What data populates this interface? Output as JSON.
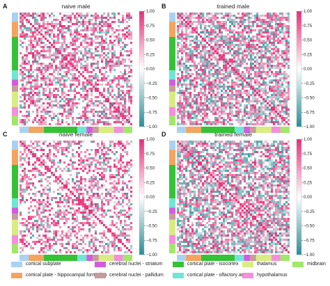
{
  "chart_data": [
    {
      "panel": "A",
      "title": "naive male",
      "type": "heatmap",
      "density": 0.55,
      "negative_share": 0.28,
      "seed": 11
    },
    {
      "panel": "B",
      "title": "trained male",
      "type": "heatmap",
      "density": 0.7,
      "negative_share": 0.45,
      "seed": 23
    },
    {
      "panel": "C",
      "title": "naive female",
      "type": "heatmap",
      "density": 0.42,
      "negative_share": 0.25,
      "seed": 37
    },
    {
      "panel": "D",
      "title": "trained female",
      "type": "heatmap",
      "density": 0.68,
      "negative_share": 0.5,
      "seed": 53
    }
  ],
  "colorbar": {
    "ticks": [
      "1.00",
      "0.75",
      "0.50",
      "0.25",
      "0.00",
      "−0.25",
      "−0.50",
      "−0.75",
      "−1.00"
    ],
    "range": [
      -1,
      1
    ],
    "pos_color": "#e8317a",
    "neg_color": "#2f8f99"
  },
  "region_groups": [
    {
      "name": "cortical subplate",
      "color": "#a9d2f2",
      "count": 3
    },
    {
      "name": "cortical plate - hippocampal formation",
      "color": "#f3a45f",
      "count": 5
    },
    {
      "name": "cortical plate - isocortex",
      "color": "#35c236",
      "count": 11
    },
    {
      "name": "cortical plate - olfactory areas",
      "color": "#6fe6d6",
      "count": 3
    },
    {
      "name": "cerebral nuclei - striatum",
      "color": "#d45be0",
      "count": 2
    },
    {
      "name": "cerebral nuclei - pallidum",
      "color": "#c79b9b",
      "count": 2
    },
    {
      "name": "thalamus",
      "color": "#d9ec82",
      "count": 5
    },
    {
      "name": "hypothalamus",
      "color": "#f58fd9",
      "count": 3
    },
    {
      "name": "midbrain",
      "color": "#9fe869",
      "count": 3
    }
  ],
  "legend": [
    {
      "label": "cortical subplate",
      "color": "#a9d2f2"
    },
    {
      "label": "cortical plate - hippocampal formation",
      "color": "#f3a45f"
    },
    {
      "label": "cerebral nuclei - striatum",
      "color": "#d45be0"
    },
    {
      "label": "cerebral nuclei - pallidum",
      "color": "#c79b9b"
    },
    {
      "label": "cortical plate - isocortex",
      "color": "#35c236"
    },
    {
      "label": "cortical plate - olfactory areas",
      "color": "#6fe6d6"
    },
    {
      "label": "thalamus",
      "color": "#d9ec82"
    },
    {
      "label": "hypothalamus",
      "color": "#f58fd9"
    },
    {
      "label": "midbrain",
      "color": "#9fe869"
    }
  ]
}
